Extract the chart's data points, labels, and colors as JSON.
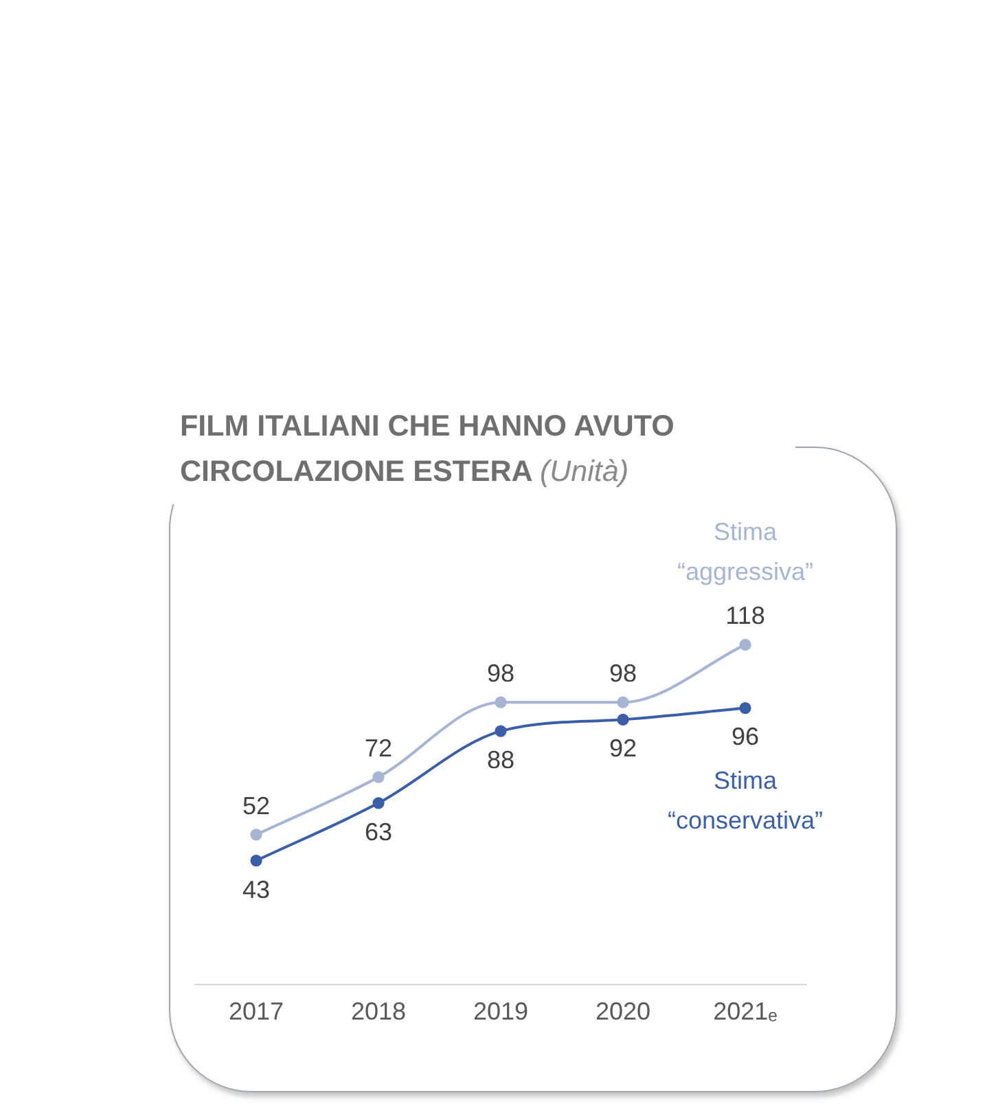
{
  "chart_data": {
    "type": "line",
    "title": "FILM ITALIANI CHE HANNO AVUTO CIRCOLAZIONE ESTERA (Unità)",
    "categories": [
      "2017",
      "2018",
      "2019",
      "2020",
      "2021ₑ"
    ],
    "series": [
      {
        "name": "Stima “aggressiva”",
        "color": "#a6b5d3",
        "values": [
          52,
          72,
          98,
          98,
          118
        ]
      },
      {
        "name": "Stima “conservativa”",
        "color": "#3a5ea8",
        "values": [
          43,
          63,
          88,
          92,
          96
        ]
      }
    ],
    "data_labels": true,
    "marker": "circle",
    "tick_labels": "x"
  }
}
